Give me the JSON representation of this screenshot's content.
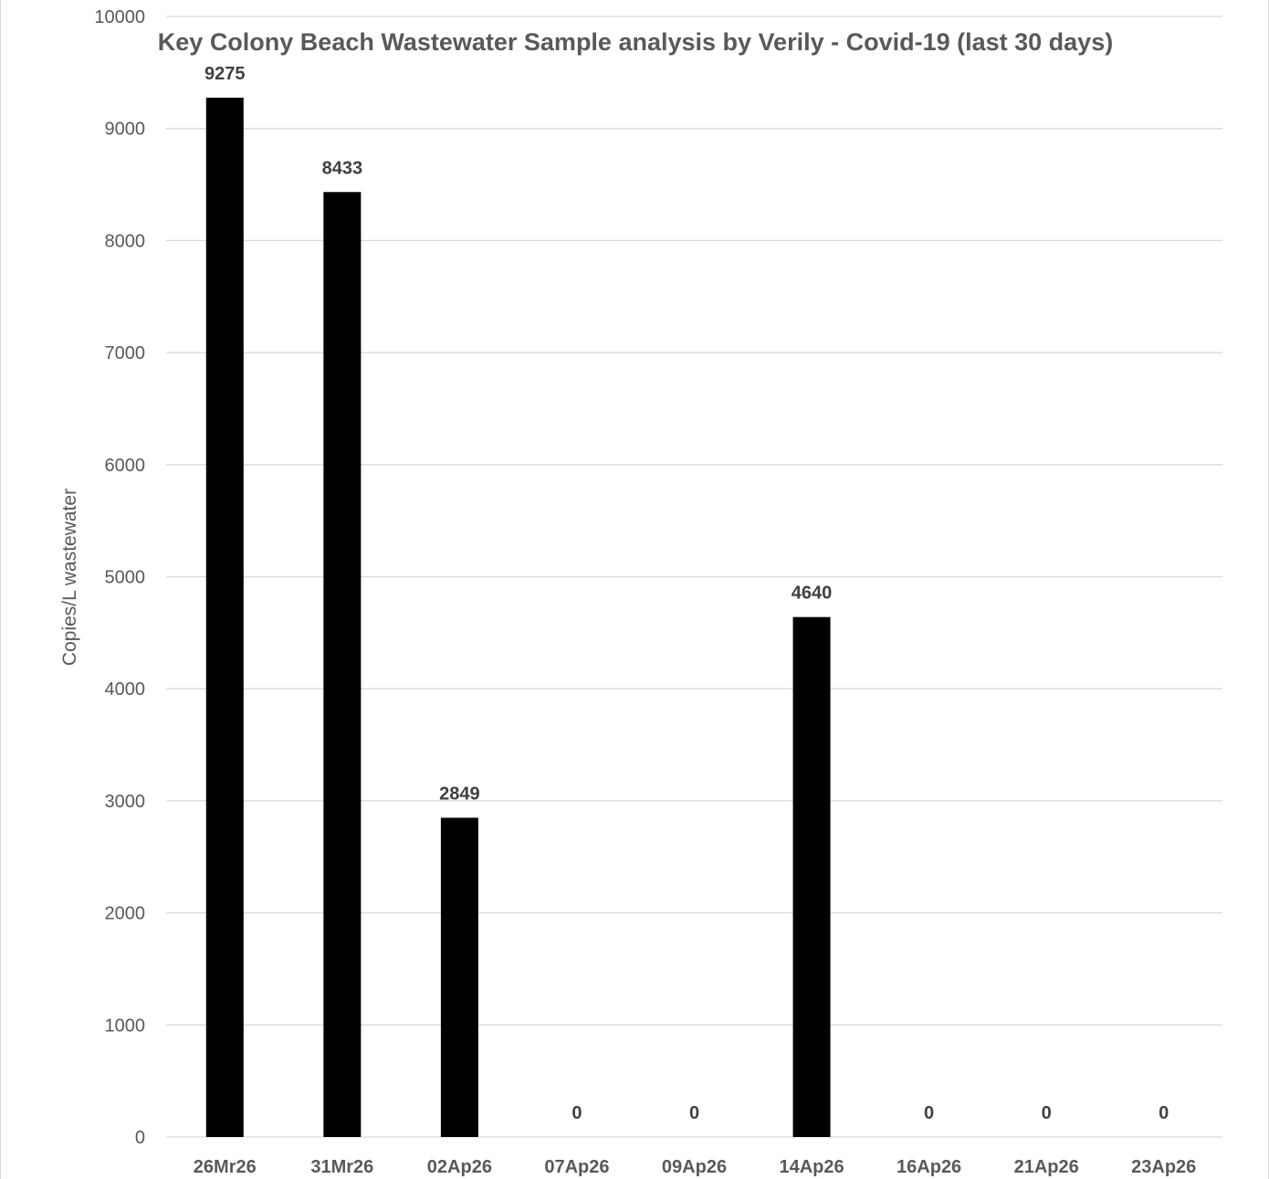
{
  "chart_data": {
    "type": "bar",
    "title": "Key Colony Beach Wastewater Sample analysis by Verily - Covid-19 (last 30 days)",
    "xlabel": "",
    "ylabel": "Copies/L wastewater",
    "categories": [
      "26Mr26",
      "31Mr26",
      "02Ap26",
      "07Ap26",
      "09Ap26",
      "14Ap26",
      "16Ap26",
      "21Ap26",
      "23Ap26"
    ],
    "values": [
      9275,
      8433,
      2849,
      0,
      0,
      4640,
      0,
      0,
      0
    ],
    "data_labels": [
      "9275",
      "8433",
      "2849",
      "0",
      "0",
      "4640",
      "0",
      "0",
      "0"
    ],
    "ylim": [
      0,
      10000
    ],
    "yticks": [
      0,
      1000,
      2000,
      3000,
      4000,
      5000,
      6000,
      7000,
      8000,
      9000,
      10000
    ],
    "ytick_labels": [
      "0",
      "1000",
      "2000",
      "3000",
      "4000",
      "5000",
      "6000",
      "7000",
      "8000",
      "9000",
      "10000"
    ],
    "grid": true,
    "legend": "none",
    "bar_color": "#000000",
    "grid_color": "#d9d9d9",
    "text_color": "#595959",
    "label_color": "#404040"
  }
}
